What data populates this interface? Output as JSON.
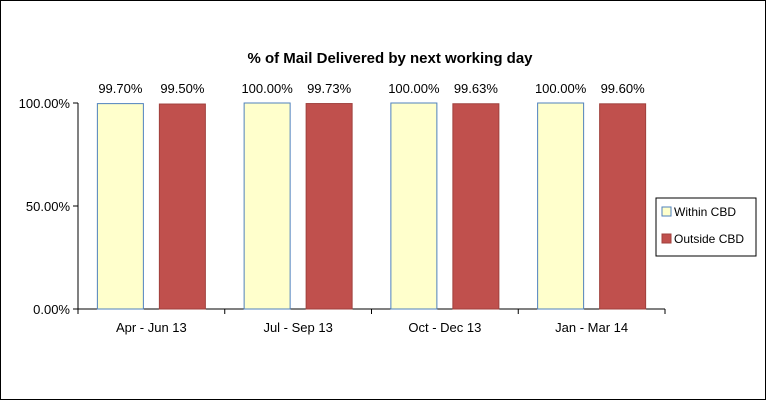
{
  "chart_data": {
    "type": "bar",
    "title": "% of Mail Delivered by next working day",
    "xlabel": "",
    "ylabel": "",
    "categories": [
      "Apr - Jun 13",
      "Jul - Sep 13",
      "Oct - Dec 13",
      "Jan - Mar 14"
    ],
    "series": [
      {
        "name": "Within CBD",
        "values": [
          99.7,
          100.0,
          100.0,
          100.0
        ],
        "labels": [
          "99.70%",
          "100.00%",
          "100.00%",
          "100.00%"
        ],
        "color": "#FFFFCC",
        "border": "#4F81BD"
      },
      {
        "name": "Outside CBD",
        "values": [
          99.5,
          99.73,
          99.63,
          99.6
        ],
        "labels": [
          "99.50%",
          "99.73%",
          "99.63%",
          "99.60%"
        ],
        "color": "#C0504D",
        "border": "#A0403D"
      }
    ],
    "ylim": [
      0,
      100
    ],
    "yticks": [
      0,
      50,
      100
    ],
    "ytick_labels": [
      "0.00%",
      "50.00%",
      "100.00%"
    ],
    "grid": false,
    "legend_position": "right"
  }
}
